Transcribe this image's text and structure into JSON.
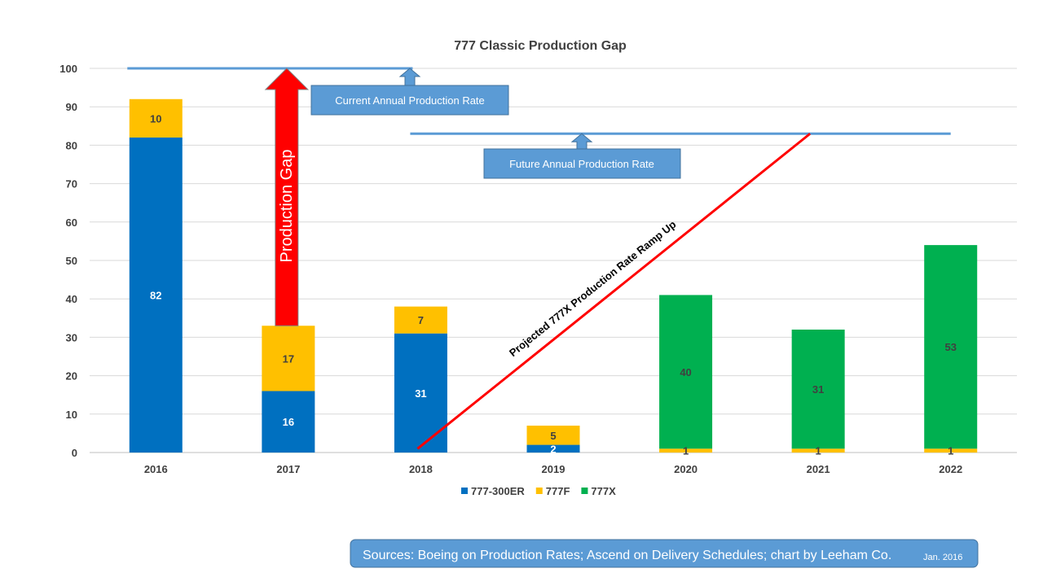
{
  "chart_data": {
    "type": "bar",
    "stacked": true,
    "title": "777 Classic Production Gap",
    "categories": [
      "2016",
      "2017",
      "2018",
      "2019",
      "2020",
      "2021",
      "2022"
    ],
    "series": [
      {
        "name": "777-300ER",
        "color": "#0070c0",
        "values": [
          82,
          16,
          31,
          2,
          0,
          0,
          0
        ],
        "labels": [
          "82",
          "16",
          "31",
          "2",
          "",
          "",
          ""
        ]
      },
      {
        "name": "777F",
        "color": "#ffc000",
        "values": [
          10,
          17,
          7,
          5,
          1,
          1,
          1
        ],
        "labels": [
          "10",
          "17",
          "7",
          "5",
          "1",
          "1",
          "1"
        ]
      },
      {
        "name": "777X",
        "color": "#00b050",
        "values": [
          0,
          0,
          0,
          0,
          40,
          31,
          53
        ],
        "labels": [
          "",
          "",
          "",
          "",
          "40",
          "31",
          "53"
        ]
      }
    ],
    "yticks": [
      0,
      10,
      20,
      30,
      40,
      50,
      60,
      70,
      80,
      90,
      100
    ],
    "ylim": [
      0,
      100
    ],
    "grid": true,
    "legend_position": "bottom",
    "reference_lines": [
      {
        "label": "Current Annual Production Rate",
        "value": 100,
        "from": "2016",
        "to": "2018"
      },
      {
        "label": "Future Annual Production Rate",
        "value": 83,
        "from": "2018",
        "to": "2022"
      }
    ],
    "gap_arrow": {
      "label": "Production Gap",
      "category": "2017",
      "from": 33,
      "to": 100,
      "color": "#ff0000"
    },
    "ramp_line": {
      "label": "Projected 777X Production Rate Ramp Up",
      "from": [
        "2018",
        1
      ],
      "to": [
        "2021",
        83
      ],
      "color": "#ff0000"
    }
  },
  "source_note": {
    "text": "Sources: Boeing on Production Rates; Ascend on Delivery Schedules; chart by Leeham Co.",
    "date": "Jan. 2016"
  }
}
